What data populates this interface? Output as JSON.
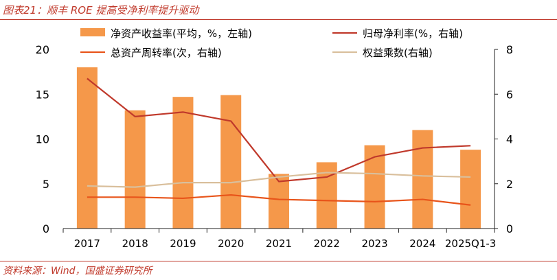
{
  "header": {
    "title": "图表21：顺丰 ROE 提高受净利率提升驱动"
  },
  "footer": {
    "source": "资料来源：Wind，国盛证券研究所"
  },
  "chart_data": {
    "type": "bar",
    "categories": [
      "2017",
      "2018",
      "2019",
      "2020",
      "2021",
      "2022",
      "2023",
      "2024",
      "2025Q1-3"
    ],
    "left_axis": {
      "ylim": [
        0,
        20
      ],
      "ticks": [
        "0",
        "5",
        "10",
        "15",
        "20"
      ]
    },
    "right_axis": {
      "ylim": [
        0,
        8
      ],
      "ticks": [
        "0",
        "2",
        "4",
        "6",
        "8"
      ]
    },
    "grid": false,
    "legend_placement": "top",
    "series": [
      {
        "name": "净资产收益率(平均，%，左轴)",
        "kind": "bar",
        "axis": "left",
        "color": "#f5984a",
        "values": [
          18.0,
          13.2,
          14.7,
          14.9,
          6.1,
          7.4,
          9.3,
          11.0,
          8.8
        ]
      },
      {
        "name": "归母净利率(%，右轴)",
        "kind": "line",
        "axis": "right",
        "color": "#c0392b",
        "values": [
          6.7,
          5.0,
          5.2,
          4.8,
          2.1,
          2.3,
          3.2,
          3.6,
          3.7
        ]
      },
      {
        "name": "总资产周转率(次，右轴)",
        "kind": "line",
        "axis": "right",
        "color": "#e8541a",
        "values": [
          1.4,
          1.4,
          1.35,
          1.5,
          1.3,
          1.25,
          1.2,
          1.3,
          1.05
        ]
      },
      {
        "name": "权益乘数(右轴)",
        "kind": "line",
        "axis": "right",
        "color": "#d9bf9c",
        "values": [
          1.9,
          1.85,
          2.05,
          2.05,
          2.3,
          2.5,
          2.45,
          2.35,
          2.3
        ]
      }
    ]
  }
}
